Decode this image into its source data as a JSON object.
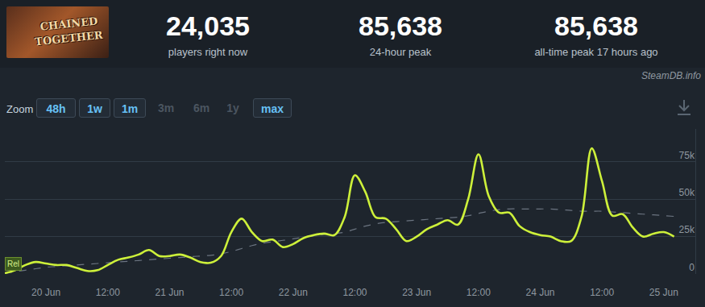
{
  "header": {
    "logo_text": [
      "CHAINED",
      "TOGETHER"
    ],
    "stats": [
      {
        "value": "24,035",
        "label": "players right now"
      },
      {
        "value": "85,638",
        "label": "24-hour peak"
      },
      {
        "value": "85,638",
        "label": "all-time peak 17 hours ago"
      }
    ]
  },
  "toolbar": {
    "watermark": "SteamDB.info",
    "zoom_label": "Zoom",
    "buttons": [
      {
        "text": "48h",
        "enabled": true
      },
      {
        "text": "1w",
        "enabled": true
      },
      {
        "text": "1m",
        "enabled": true
      },
      {
        "text": "3m",
        "enabled": false
      },
      {
        "text": "6m",
        "enabled": false
      },
      {
        "text": "1y",
        "enabled": false
      },
      {
        "text": "max",
        "enabled": true
      }
    ]
  },
  "chart_data": {
    "type": "line",
    "categories": [
      null,
      null,
      null,
      null,
      "20 Jun",
      null,
      null,
      null,
      null,
      null,
      "12:00",
      null,
      null,
      null,
      null,
      null,
      "21 Jun",
      null,
      null,
      null,
      null,
      null,
      "12:00",
      null,
      null,
      null,
      null,
      null,
      "22 Jun",
      null,
      null,
      null,
      null,
      null,
      "12:00",
      null,
      null,
      null,
      null,
      null,
      "23 Jun",
      null,
      null,
      null,
      null,
      null,
      "12:00",
      null,
      null,
      null,
      null,
      null,
      "24 Jun",
      null,
      null,
      null,
      null,
      null,
      "12:00",
      null,
      null,
      null,
      null,
      null,
      "25 Jun",
      null
    ],
    "series": [
      {
        "color": "#6b7480",
        "line_style": "dash",
        "values": [
          500,
          1500,
          2500,
          3500,
          4500,
          5000,
          5500,
          6000,
          6500,
          7000,
          7500,
          8000,
          8500,
          9000,
          9500,
          10000,
          10500,
          11000,
          11500,
          12000,
          12500,
          13500,
          15000,
          17000,
          19000,
          20500,
          21500,
          22500,
          23500,
          24500,
          25500,
          26500,
          27000,
          28000,
          30000,
          32000,
          33500,
          34500,
          35000,
          35500,
          36000,
          36500,
          37000,
          37500,
          38000,
          39000,
          40500,
          42000,
          43000,
          43500,
          43500,
          43500,
          43500,
          43500,
          43000,
          42500,
          42000,
          42000,
          42000,
          41500,
          41000,
          40500,
          40000,
          39500,
          39000,
          38500
        ]
      },
      {
        "color": "#cdf03a",
        "line_style": "solid",
        "values": [
          500,
          2500,
          6000,
          8000,
          7000,
          6000,
          6000,
          4000,
          2000,
          2500,
          6000,
          9500,
          11000,
          13000,
          16000,
          12000,
          12000,
          13000,
          11000,
          8000,
          7500,
          12000,
          28000,
          37000,
          28000,
          22000,
          23000,
          18000,
          20000,
          24000,
          26000,
          27000,
          26000,
          38000,
          66000,
          55000,
          38000,
          37000,
          30000,
          22000,
          25000,
          30000,
          33000,
          36000,
          33000,
          50000,
          80000,
          52000,
          41000,
          41000,
          32000,
          28000,
          26000,
          25000,
          22000,
          22000,
          38000,
          84000,
          62000,
          39000,
          40000,
          31000,
          25000,
          27000,
          28000,
          25000
        ]
      }
    ],
    "ylim": [
      0,
      97000
    ],
    "yticks": [
      0,
      {
        "value": 25000,
        "label": "25k"
      },
      {
        "value": 50000,
        "label": "50k"
      },
      {
        "value": 75000,
        "label": "75k"
      }
    ],
    "grid": true,
    "annotations": [
      {
        "text": "Rel",
        "x": 0,
        "y": 7000
      }
    ]
  }
}
